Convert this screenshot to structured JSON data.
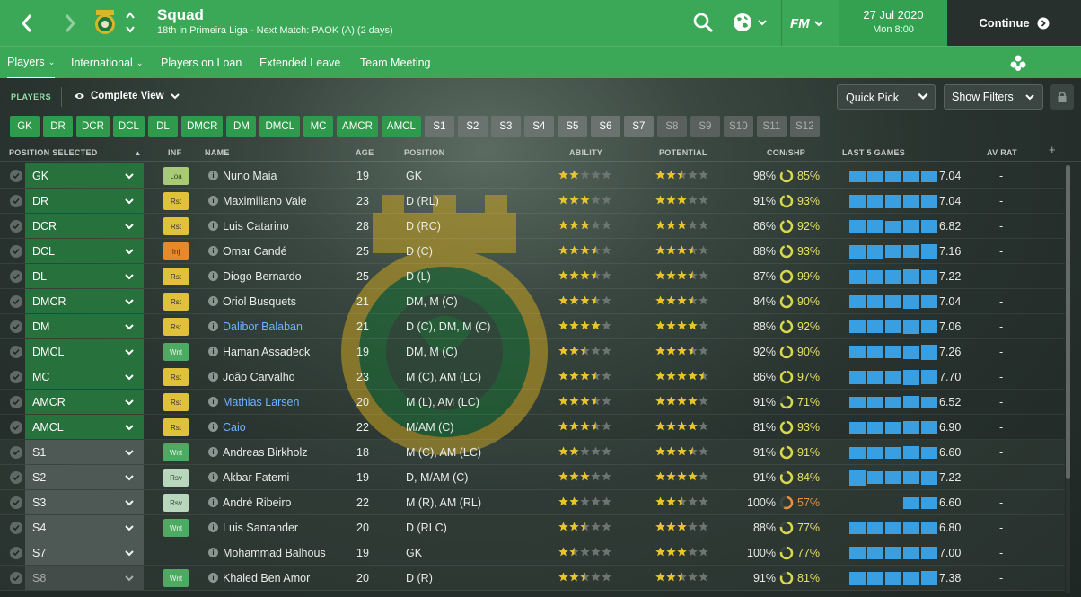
{
  "header": {
    "title": "Squad",
    "subtitle": "18th in Primeira Liga - Next Match: PAOK (A) (2 days)",
    "fm_label": "FM",
    "date": "27 Jul 2020",
    "time": "Mon 8:00",
    "continue_label": "Continue"
  },
  "subnav": {
    "tabs": [
      {
        "label": "Players",
        "caret": "⌄"
      },
      {
        "label": "International",
        "caret": "⌄"
      },
      {
        "label": "Players on Loan"
      },
      {
        "label": "Extended Leave"
      },
      {
        "label": "Team Meeting"
      }
    ]
  },
  "toolbar": {
    "section_label": "PLAYERS",
    "view_label": "Complete View",
    "quick_pick": "Quick Pick",
    "show_filters": "Show Filters"
  },
  "position_chips": [
    "GK",
    "DR",
    "DCR",
    "DCL",
    "DL",
    "DMCR",
    "DM",
    "DMCL",
    "MC",
    "AMCR",
    "AMCL",
    "S1",
    "S2",
    "S3",
    "S4",
    "S5",
    "S6",
    "S7",
    "S8",
    "S9",
    "S10",
    "S11",
    "S12"
  ],
  "columns": {
    "position_selected": "POSITION SELECTED",
    "inf": "INF",
    "name": "NAME",
    "age": "AGE",
    "position": "POSITION",
    "ability": "ABILITY",
    "potential": "POTENTIAL",
    "con_shp": "CON/SHP",
    "last5": "LAST 5 GAMES",
    "av_rat": "AV RAT"
  },
  "colors": {
    "accent_green": "#3aa857",
    "link_blue": "#6fb2ff",
    "star_gold": "#e9c42c",
    "bar_blue": "#3a9fe0"
  },
  "players": [
    {
      "slot": "GK",
      "inf": "Loa",
      "name": "Nuno Maia",
      "age": "19",
      "pos": "GK",
      "ability": 2,
      "potential": 2.5,
      "con": "98%",
      "shp": "85%",
      "shp_fill": 0.85,
      "last5": [
        0.65,
        0.65,
        0.65,
        0.65,
        0.65
      ],
      "last5_val": "7.04",
      "av": "-"
    },
    {
      "slot": "DR",
      "inf": "Rst",
      "name": "Maximiliano Vale",
      "age": "23",
      "pos": "D (RL)",
      "ability": 3,
      "potential": 3,
      "con": "91%",
      "shp": "93%",
      "shp_fill": 0.93,
      "last5": [
        0.75,
        0.75,
        0.75,
        0.75,
        0.75
      ],
      "last5_val": "7.04",
      "av": "-"
    },
    {
      "slot": "DCR",
      "inf": "Rst",
      "name": "Luis Catarino",
      "age": "28",
      "pos": "D (RC)",
      "ability": 3,
      "potential": 3,
      "con": "86%",
      "shp": "92%",
      "shp_fill": 0.92,
      "last5": [
        0.7,
        0.7,
        0.65,
        0.7,
        0.7
      ],
      "last5_val": "6.82",
      "av": "-"
    },
    {
      "slot": "DCL",
      "inf": "Inj",
      "name": "Omar Candé",
      "age": "25",
      "pos": "D (C)",
      "ability": 3.5,
      "potential": 3.5,
      "con": "88%",
      "shp": "93%",
      "shp_fill": 0.93,
      "last5": [
        0.75,
        0.75,
        0.7,
        0.7,
        0.8
      ],
      "last5_val": "7.16",
      "av": "-"
    },
    {
      "slot": "DL",
      "inf": "Rst",
      "name": "Diogo Bernardo",
      "age": "25",
      "pos": "D (L)",
      "ability": 3.5,
      "potential": 3.5,
      "con": "87%",
      "shp": "99%",
      "shp_fill": 0.99,
      "last5": [
        0.75,
        0.75,
        0.75,
        0.8,
        0.75
      ],
      "last5_val": "7.22",
      "av": "-"
    },
    {
      "slot": "DMCR",
      "inf": "Rst",
      "name": "Oriol Busquets",
      "age": "21",
      "pos": "DM, M (C)",
      "ability": 3.5,
      "potential": 3.5,
      "con": "84%",
      "shp": "90%",
      "shp_fill": 0.9,
      "last5": [
        0.7,
        0.7,
        0.7,
        0.75,
        0.7
      ],
      "last5_val": "7.04",
      "av": "-"
    },
    {
      "slot": "DM",
      "inf": "Rst",
      "name": "Dalibor Balaban",
      "age": "21",
      "pos": "D (C), DM, M (C)",
      "ability": 4,
      "potential": 4,
      "con": "88%",
      "shp": "92%",
      "shp_fill": 0.92,
      "last5": [
        0.7,
        0.7,
        0.7,
        0.8,
        0.7
      ],
      "last5_val": "7.06",
      "av": "-",
      "link": true
    },
    {
      "slot": "DMCL",
      "inf": "Wnt",
      "name": "Haman Assadeck",
      "age": "19",
      "pos": "DM, M (C)",
      "ability": 2.5,
      "potential": 3.5,
      "con": "92%",
      "shp": "90%",
      "shp_fill": 0.9,
      "last5": [
        0.7,
        0.7,
        0.7,
        0.75,
        0.85
      ],
      "last5_val": "7.26",
      "av": "-"
    },
    {
      "slot": "MC",
      "inf": "Rst",
      "name": "João Carvalho",
      "age": "23",
      "pos": "M (C), AM (LC)",
      "ability": 3.5,
      "potential": 4.5,
      "con": "86%",
      "shp": "97%",
      "shp_fill": 0.97,
      "last5": [
        0.75,
        0.75,
        0.75,
        0.85,
        0.8
      ],
      "last5_val": "7.70",
      "av": "-"
    },
    {
      "slot": "AMCR",
      "inf": "Rst",
      "name": "Mathias Larsen",
      "age": "20",
      "pos": "M (L), AM (LC)",
      "ability": 3.5,
      "potential": 4,
      "con": "91%",
      "shp": "71%",
      "shp_fill": 0.71,
      "last5": [
        0.6,
        0.6,
        0.6,
        0.7,
        0.6
      ],
      "last5_val": "6.52",
      "av": "-",
      "link": true
    },
    {
      "slot": "AMCL",
      "inf": "Rst",
      "name": "Caio",
      "age": "22",
      "pos": "M/AM (C)",
      "ability": 3.5,
      "potential": 4,
      "con": "81%",
      "shp": "93%",
      "shp_fill": 0.93,
      "last5": [
        0.65,
        0.65,
        0.65,
        0.7,
        0.7
      ],
      "last5_val": "6.90",
      "av": "-",
      "link": true
    },
    {
      "slot": "S1",
      "inf": "Wnt",
      "name": "Andreas Birkholz",
      "age": "18",
      "pos": "M (C), AM (LC)",
      "ability": 2,
      "potential": 3.5,
      "con": "91%",
      "shp": "91%",
      "shp_fill": 0.91,
      "last5": [
        0.65,
        0.65,
        0.65,
        0.7,
        0.65
      ],
      "last5_val": "6.60",
      "av": "-"
    },
    {
      "slot": "S2",
      "inf": "Rsv",
      "name": "Akbar Fatemi",
      "age": "19",
      "pos": "D, M/AM (C)",
      "ability": 3,
      "potential": 4,
      "con": "91%",
      "shp": "84%",
      "shp_fill": 0.84,
      "last5": [
        0.85,
        0.7,
        0.7,
        0.7,
        0.75
      ],
      "last5_val": "7.22",
      "av": "-"
    },
    {
      "slot": "S3",
      "inf": "Rsv",
      "name": "André Ribeiro",
      "age": "22",
      "pos": "M (R), AM (RL)",
      "ability": 2,
      "potential": 2.5,
      "con": "100%",
      "shp": "57%",
      "shp_fill": 0.57,
      "last5": [
        0,
        0,
        0,
        0.65,
        0.65
      ],
      "last5_val": "6.60",
      "av": "-"
    },
    {
      "slot": "S4",
      "inf": "Wnt",
      "name": "Luis Santander",
      "age": "20",
      "pos": "D (RLC)",
      "ability": 2.5,
      "potential": 3,
      "con": "88%",
      "shp": "77%",
      "shp_fill": 0.77,
      "last5": [
        0.65,
        0.65,
        0.65,
        0.7,
        0.7
      ],
      "last5_val": "6.80",
      "av": "-"
    },
    {
      "slot": "S7",
      "inf": "",
      "name": "Mohammad Balhous",
      "age": "19",
      "pos": "GK",
      "ability": 1.5,
      "potential": 3,
      "con": "100%",
      "shp": "77%",
      "shp_fill": 0.77,
      "last5": [
        0.7,
        0.7,
        0.7,
        0.7,
        0.7
      ],
      "last5_val": "7.00",
      "av": "-"
    },
    {
      "slot": "S8",
      "inf": "Wnt",
      "name": "Khaled Ben Amor",
      "age": "20",
      "pos": "D (R)",
      "ability": 2.5,
      "potential": 2.5,
      "con": "91%",
      "shp": "81%",
      "shp_fill": 0.81,
      "last5": [
        0.75,
        0.75,
        0.75,
        0.75,
        0.8
      ],
      "last5_val": "7.38",
      "av": "-"
    }
  ]
}
